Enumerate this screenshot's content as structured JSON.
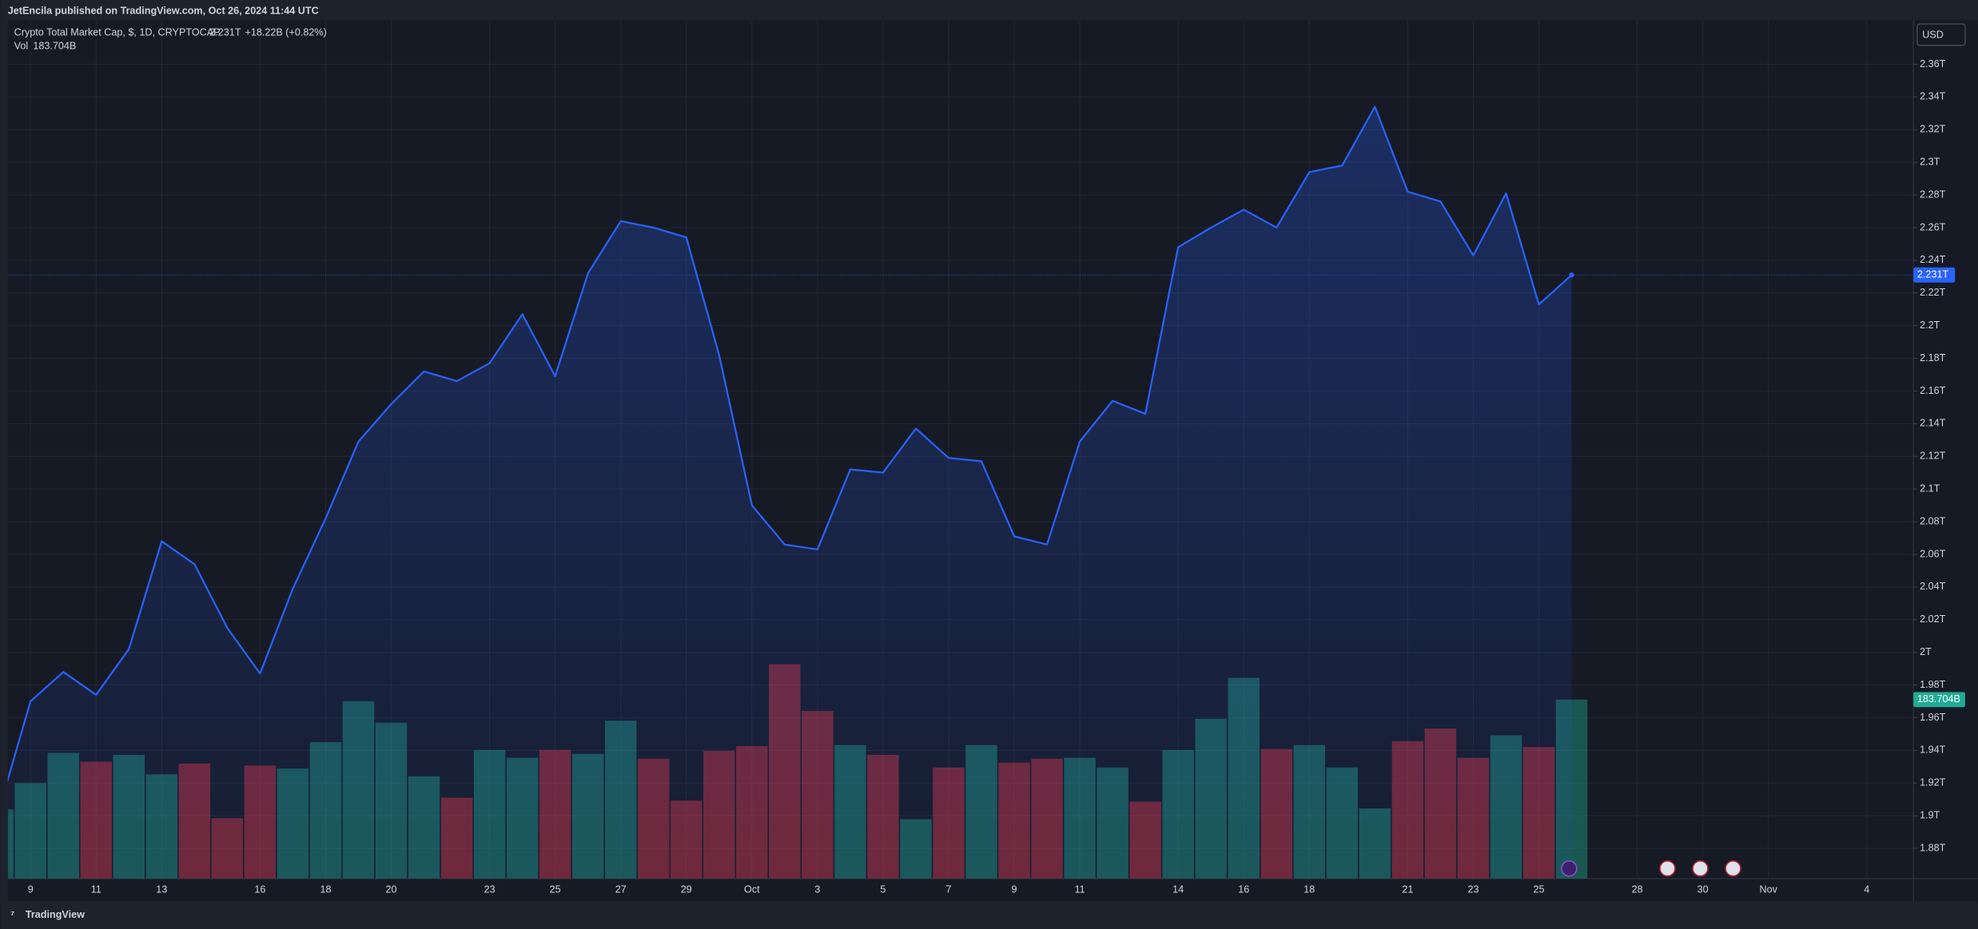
{
  "publisher_line": "JetEncila published on TradingView.com, Oct 26, 2024 11:44 UTC",
  "brand": "TradingView",
  "currency": "USD",
  "chart_data": {
    "type": "area",
    "grid": true,
    "categories": [
      null,
      "9",
      null,
      "11",
      null,
      "13",
      null,
      null,
      "16",
      null,
      "18",
      null,
      "20",
      null,
      null,
      "23",
      null,
      "25",
      null,
      "27",
      null,
      "29",
      null,
      "Oct",
      null,
      "3",
      null,
      "5",
      null,
      "7",
      null,
      "9",
      null,
      "11",
      null,
      null,
      "14",
      null,
      "16",
      null,
      "18",
      null,
      null,
      "21",
      null,
      "23",
      null,
      "25",
      null,
      null,
      "28",
      null,
      "30",
      null,
      "Nov",
      null,
      null,
      "4"
    ],
    "ylim": [
      1.8615,
      2.387
    ],
    "yticks": [
      {
        "value": 1.88,
        "label": "1.88T"
      },
      {
        "value": 1.9,
        "label": "1.9T"
      },
      {
        "value": 1.92,
        "label": "1.92T"
      },
      {
        "value": 1.94,
        "label": "1.94T"
      },
      {
        "value": 1.96,
        "label": "1.96T"
      },
      {
        "value": 1.98,
        "label": "1.98T"
      },
      {
        "value": 2,
        "label": "2T"
      },
      {
        "value": 2.02,
        "label": "2.02T"
      },
      {
        "value": 2.04,
        "label": "2.04T"
      },
      {
        "value": 2.06,
        "label": "2.06T"
      },
      {
        "value": 2.08,
        "label": "2.08T"
      },
      {
        "value": 2.1,
        "label": "2.1T"
      },
      {
        "value": 2.12,
        "label": "2.12T"
      },
      {
        "value": 2.14,
        "label": "2.14T"
      },
      {
        "value": 2.16,
        "label": "2.16T"
      },
      {
        "value": 2.18,
        "label": "2.18T"
      },
      {
        "value": 2.2,
        "label": "2.2T"
      },
      {
        "value": 2.22,
        "label": "2.22T"
      },
      {
        "value": 2.24,
        "label": "2.24T"
      },
      {
        "value": 2.26,
        "label": "2.26T"
      },
      {
        "value": 2.28,
        "label": "2.28T"
      },
      {
        "value": 2.3,
        "label": "2.3T"
      },
      {
        "value": 2.32,
        "label": "2.32T"
      },
      {
        "value": 2.34,
        "label": "2.34T"
      },
      {
        "value": 2.36,
        "label": "2.36T"
      }
    ],
    "y2lim": [
      0,
      881
    ],
    "series": [
      {
        "name": "Crypto Total Market Cap, $, 1D, CRYPTOCAP",
        "color": "#2962ff",
        "last_label": "2.231T",
        "change": "+18.22B (+0.82%)",
        "values": [
          1.901,
          1.97,
          1.988,
          1.974,
          2.002,
          2.068,
          2.054,
          2.015,
          1.987,
          2.039,
          2.082,
          2.129,
          2.152,
          2.172,
          2.166,
          2.177,
          2.207,
          2.169,
          2.232,
          2.264,
          2.26,
          2.254,
          2.182,
          2.09,
          2.066,
          2.063,
          2.112,
          2.11,
          2.137,
          2.119,
          2.117,
          2.071,
          2.066,
          2.129,
          2.154,
          2.146,
          2.248,
          2.26,
          2.271,
          2.26,
          2.294,
          2.298,
          2.334,
          2.282,
          2.276,
          2.243,
          2.281,
          2.213,
          2.231,
          null,
          null,
          null,
          null,
          null,
          null,
          null,
          null,
          null
        ]
      },
      {
        "name": "Vol",
        "axis": "y2",
        "last_label": "183.704B",
        "color": "#22ab94",
        "values": [
          71,
          98,
          129,
          120,
          127,
          107,
          118,
          62,
          116,
          113,
          140,
          182,
          160,
          105,
          83,
          132,
          124,
          132,
          128,
          162,
          123,
          80,
          131,
          136,
          220,
          172,
          137,
          127,
          61,
          114,
          137,
          119,
          123,
          124,
          114,
          79,
          132,
          164,
          206,
          133,
          137,
          114,
          72,
          141,
          154,
          124,
          147,
          135,
          183.704,
          null,
          null,
          null,
          null,
          null,
          null,
          null,
          null,
          null
        ],
        "colors": [
          "#22ab94",
          "#22ab94",
          "#22ab94",
          "#f23645",
          "#22ab94",
          "#22ab94",
          "#f23645",
          "#f23645",
          "#f23645",
          "#22ab94",
          "#22ab94",
          "#22ab94",
          "#22ab94",
          "#22ab94",
          "#f23645",
          "#22ab94",
          "#22ab94",
          "#f23645",
          "#22ab94",
          "#22ab94",
          "#f23645",
          "#f23645",
          "#f23645",
          "#f23645",
          "#f23645",
          "#f23645",
          "#22ab94",
          "#f23645",
          "#22ab94",
          "#f23645",
          "#22ab94",
          "#f23645",
          "#f23645",
          "#22ab94",
          "#22ab94",
          "#f23645",
          "#22ab94",
          "#22ab94",
          "#22ab94",
          "#f23645",
          "#22ab94",
          "#22ab94",
          "#22ab94",
          "#f23645",
          "#f23645",
          "#f23645",
          "#22ab94",
          "#f23645",
          "#22ab94"
        ]
      }
    ]
  }
}
